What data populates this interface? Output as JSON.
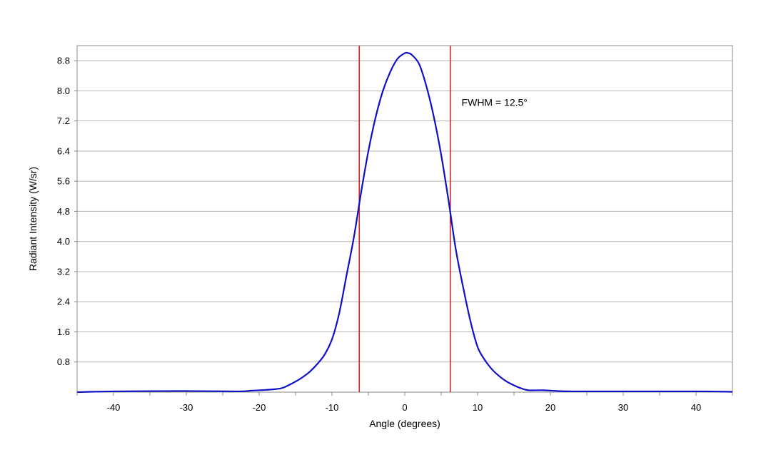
{
  "chart_data": {
    "type": "line",
    "title": "",
    "xlabel": "Angle (degrees)",
    "ylabel": "Radiant Intensity (W/sr)",
    "xlim": [
      -45,
      45
    ],
    "ylim": [
      0,
      9.2
    ],
    "x_ticks": [
      -40,
      -30,
      -20,
      -10,
      0,
      10,
      20,
      30,
      40
    ],
    "y_ticks": [
      "0.8",
      "1.6",
      "2.4",
      "3.2",
      "4.0",
      "4.8",
      "5.6",
      "6.4",
      "7.2",
      "8.0",
      "8.8"
    ],
    "grid": "horizontal",
    "legend": "none",
    "series": [
      {
        "color": "#1010c8",
        "x": [
          -45,
          -40,
          -30,
          -23,
          -21,
          -19,
          -17,
          -16,
          -15,
          -14,
          -13,
          -12,
          -11,
          -10,
          -9,
          -8,
          -7,
          -6,
          -5,
          -4,
          -3,
          -2,
          -1,
          0,
          0.5,
          1,
          2,
          3,
          4,
          5,
          6,
          7,
          8,
          9,
          10,
          11,
          12,
          13,
          14,
          15,
          16,
          17,
          19,
          21,
          23,
          30,
          40,
          45
        ],
        "y": [
          0.0,
          0.02,
          0.03,
          0.02,
          0.04,
          0.06,
          0.1,
          0.18,
          0.28,
          0.4,
          0.55,
          0.75,
          1.0,
          1.4,
          2.1,
          3.1,
          4.1,
          5.3,
          6.4,
          7.3,
          8.0,
          8.5,
          8.85,
          9.0,
          9.0,
          8.95,
          8.7,
          8.1,
          7.3,
          6.3,
          5.1,
          3.8,
          2.8,
          1.9,
          1.2,
          0.85,
          0.6,
          0.42,
          0.28,
          0.18,
          0.1,
          0.05,
          0.05,
          0.03,
          0.02,
          0.02,
          0.02,
          0.01
        ]
      }
    ],
    "vlines": [
      {
        "x": -6.25,
        "color": "#d42020"
      },
      {
        "x": 6.25,
        "color": "#d42020"
      }
    ],
    "annotations": [
      {
        "text": "FWHM = 12.5°",
        "x": 7.8,
        "y": 7.6
      }
    ]
  }
}
